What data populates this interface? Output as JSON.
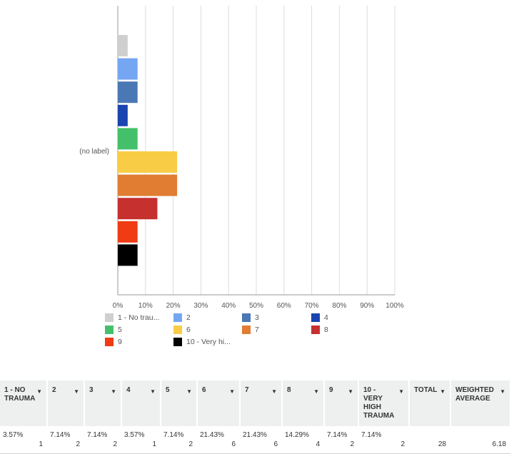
{
  "chart_data": {
    "type": "bar",
    "orientation": "horizontal",
    "categories": [
      "(no label)"
    ],
    "series": [
      {
        "name": "1 - No trau...",
        "values": [
          3.57
        ],
        "color": "#cfcfcf"
      },
      {
        "name": "2",
        "values": [
          7.14
        ],
        "color": "#75a6f2"
      },
      {
        "name": "3",
        "values": [
          7.14
        ],
        "color": "#4a78b4"
      },
      {
        "name": "4",
        "values": [
          3.57
        ],
        "color": "#1a44b0"
      },
      {
        "name": "5",
        "values": [
          7.14
        ],
        "color": "#45c06a"
      },
      {
        "name": "6",
        "values": [
          21.43
        ],
        "color": "#f8cd45"
      },
      {
        "name": "7",
        "values": [
          21.43
        ],
        "color": "#e07d32"
      },
      {
        "name": "8",
        "values": [
          14.29
        ],
        "color": "#c6302f"
      },
      {
        "name": "9",
        "values": [
          7.14
        ],
        "color": "#f03b14"
      },
      {
        "name": "10 - Very hi...",
        "values": [
          7.14
        ],
        "color": "#000000"
      }
    ],
    "xlim": [
      0,
      100
    ],
    "xticks": [
      "0%",
      "10%",
      "20%",
      "30%",
      "40%",
      "50%",
      "60%",
      "70%",
      "80%",
      "90%",
      "100%"
    ],
    "grid": true,
    "legend_position": "bottom"
  },
  "table": {
    "headers": [
      "1 - NO TRAUMA",
      "2",
      "3",
      "4",
      "5",
      "6",
      "7",
      "8",
      "9",
      "10 - VERY HIGH TRAUMA",
      "TOTAL",
      "WEIGHTED AVERAGE"
    ],
    "percents": [
      "3.57%",
      "7.14%",
      "7.14%",
      "3.57%",
      "7.14%",
      "21.43%",
      "21.43%",
      "14.29%",
      "7.14%",
      "7.14%",
      "",
      ""
    ],
    "counts": [
      "1",
      "2",
      "2",
      "1",
      "2",
      "6",
      "6",
      "4",
      "2",
      "2",
      "28",
      "6.18"
    ]
  }
}
